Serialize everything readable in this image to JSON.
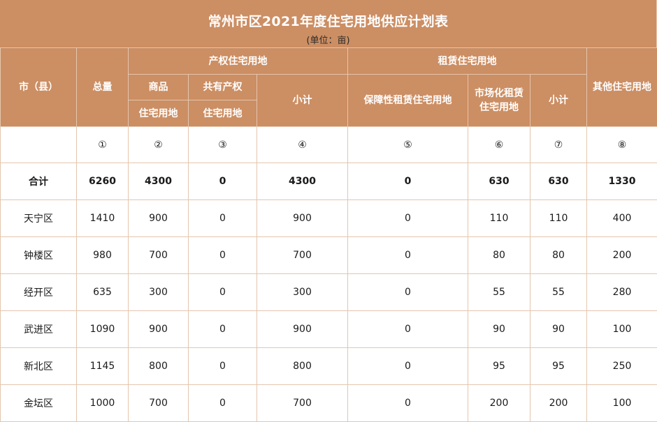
{
  "title": "常州市区2021年度住宅用地供应计划表",
  "unit": "(单位：亩)",
  "headers": {
    "county": "市（县）",
    "total": "总量",
    "property_group": "产权住宅用地",
    "commercial_top": "商品",
    "commercial_bottom": "住宅用地",
    "shared_top": "共有产权",
    "shared_bottom": "住宅用地",
    "subtotal_property": "小计",
    "rental_group": "租赁住宅用地",
    "affordable_rental": "保障性租赁住宅用地",
    "market_rental_top": "市场化租赁",
    "market_rental_bottom": "住宅用地",
    "subtotal_rental": "小计",
    "other": "其他住宅用地"
  },
  "column_numbers": [
    "①",
    "②",
    "③",
    "④",
    "⑤",
    "⑥",
    "⑦",
    "⑧"
  ],
  "rows": [
    {
      "name": "合计",
      "values": [
        "6260",
        "4300",
        "0",
        "4300",
        "0",
        "630",
        "630",
        "1330"
      ]
    },
    {
      "name": "天宁区",
      "values": [
        "1410",
        "900",
        "0",
        "900",
        "0",
        "110",
        "110",
        "400"
      ]
    },
    {
      "name": "钟楼区",
      "values": [
        "980",
        "700",
        "0",
        "700",
        "0",
        "80",
        "80",
        "200"
      ]
    },
    {
      "name": "经开区",
      "values": [
        "635",
        "300",
        "0",
        "300",
        "0",
        "55",
        "55",
        "280"
      ]
    },
    {
      "name": "武进区",
      "values": [
        "1090",
        "900",
        "0",
        "900",
        "0",
        "90",
        "90",
        "100"
      ]
    },
    {
      "name": "新北区",
      "values": [
        "1145",
        "800",
        "0",
        "800",
        "0",
        "95",
        "95",
        "250"
      ]
    },
    {
      "name": "金坛区",
      "values": [
        "1000",
        "700",
        "0",
        "700",
        "0",
        "200",
        "200",
        "100"
      ]
    }
  ],
  "colors": {
    "header_bg": "#cc8e63",
    "grid_line": "#e4c6ae"
  }
}
